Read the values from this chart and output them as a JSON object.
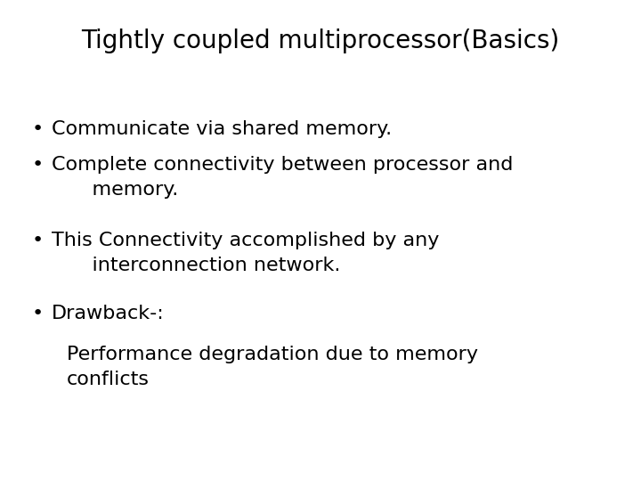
{
  "title": "Tightly coupled multiprocessor(Basics)",
  "title_fontsize": 20,
  "title_color": "#000000",
  "background_color": "#ffffff",
  "text_color": "#000000",
  "font_family": "DejaVu Sans",
  "body_fontsize": 16,
  "bullet_char": "•",
  "items": [
    {
      "has_bullet": true,
      "lines": [
        "Communicate via shared memory."
      ]
    },
    {
      "has_bullet": true,
      "lines": [
        "Complete connectivity between processor and",
        "    memory."
      ]
    },
    {
      "has_bullet": true,
      "lines": [
        "This Connectivity accomplished by any",
        "    interconnection network."
      ]
    },
    {
      "has_bullet": true,
      "lines": [
        "Drawback-:"
      ]
    },
    {
      "has_bullet": false,
      "lines": [
        "Performance degradation due to memory",
        "conflicts"
      ]
    }
  ]
}
